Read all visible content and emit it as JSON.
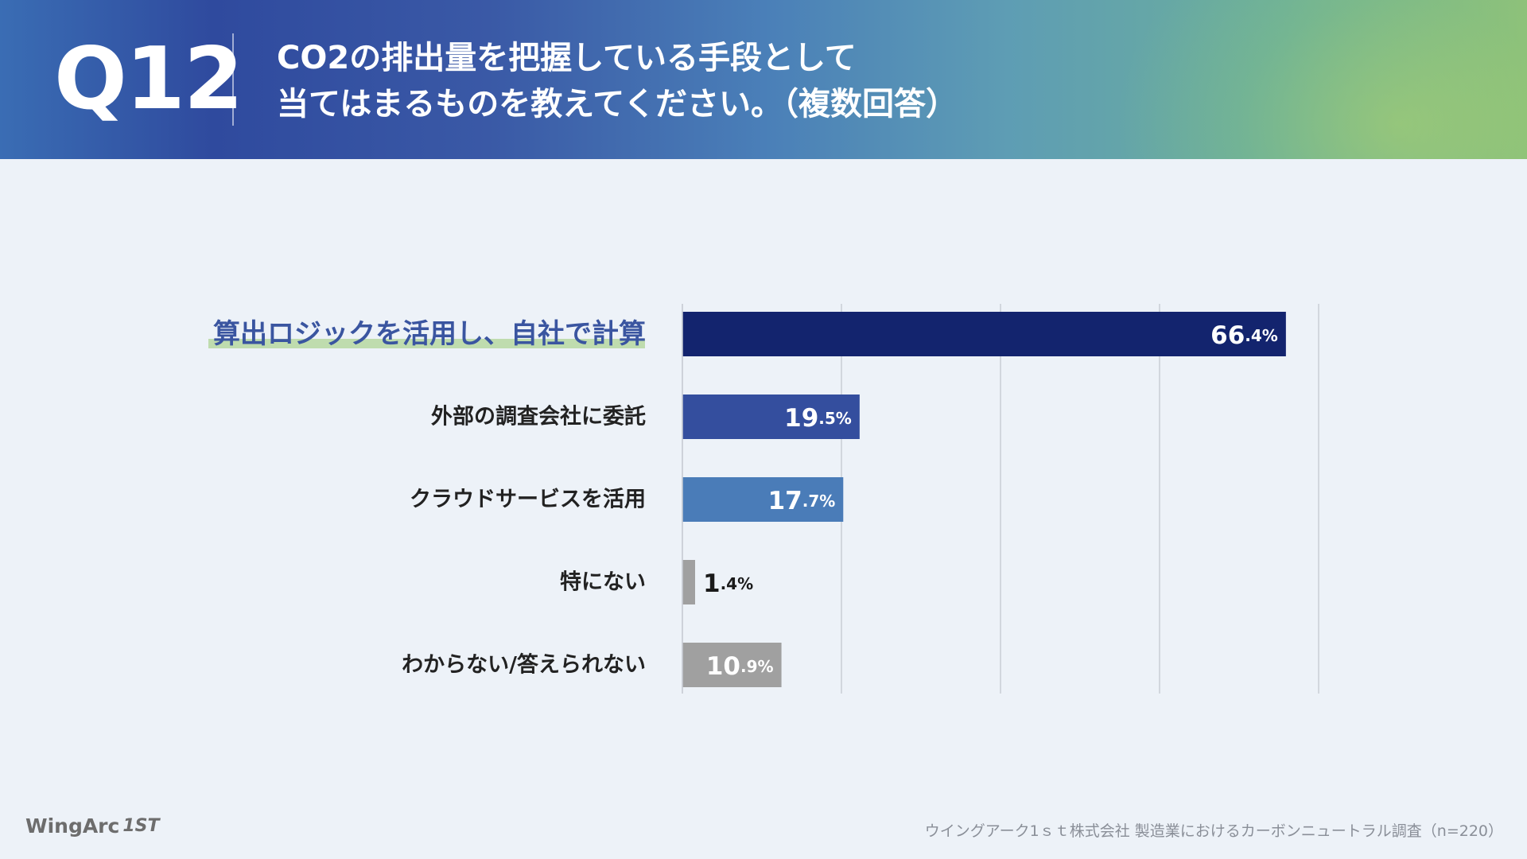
{
  "header": {
    "number": "Q12",
    "question_line1": "CO2の排出量を把握している手段として",
    "question_line2": "当てはまるものを教えてください。（複数回答）"
  },
  "chart_data": {
    "type": "bar",
    "orientation": "horizontal",
    "categories": [
      "算出ロジックを活用し、自社で計算",
      "外部の調査会社に委託",
      "クラウドサービスを活用",
      "特にない",
      "わからない/答えられない"
    ],
    "values": [
      66.4,
      19.5,
      17.7,
      1.4,
      10.9
    ],
    "value_labels": [
      {
        "int": "66",
        "dec": ".4%"
      },
      {
        "int": "19",
        "dec": ".5%"
      },
      {
        "int": "17",
        "dec": ".7%"
      },
      {
        "int": "1",
        "dec": ".4%"
      },
      {
        "int": "10",
        "dec": ".9%"
      }
    ],
    "bar_colors": [
      "#13246e",
      "#344e9e",
      "#4a7cb8",
      "#a0a0a0",
      "#a0a0a0"
    ],
    "highlight_index": 0,
    "highlight_color": "#3a55a0",
    "highlight_underline": "#bfdcae",
    "xlim": [
      0,
      70
    ],
    "grid": true
  },
  "footer": {
    "logo": "WingArc",
    "logo_badge": "1ST",
    "source": "ウイングアーク1ｓｔ株式会社 製造業におけるカーボンニュートラル調査（n=220）"
  }
}
